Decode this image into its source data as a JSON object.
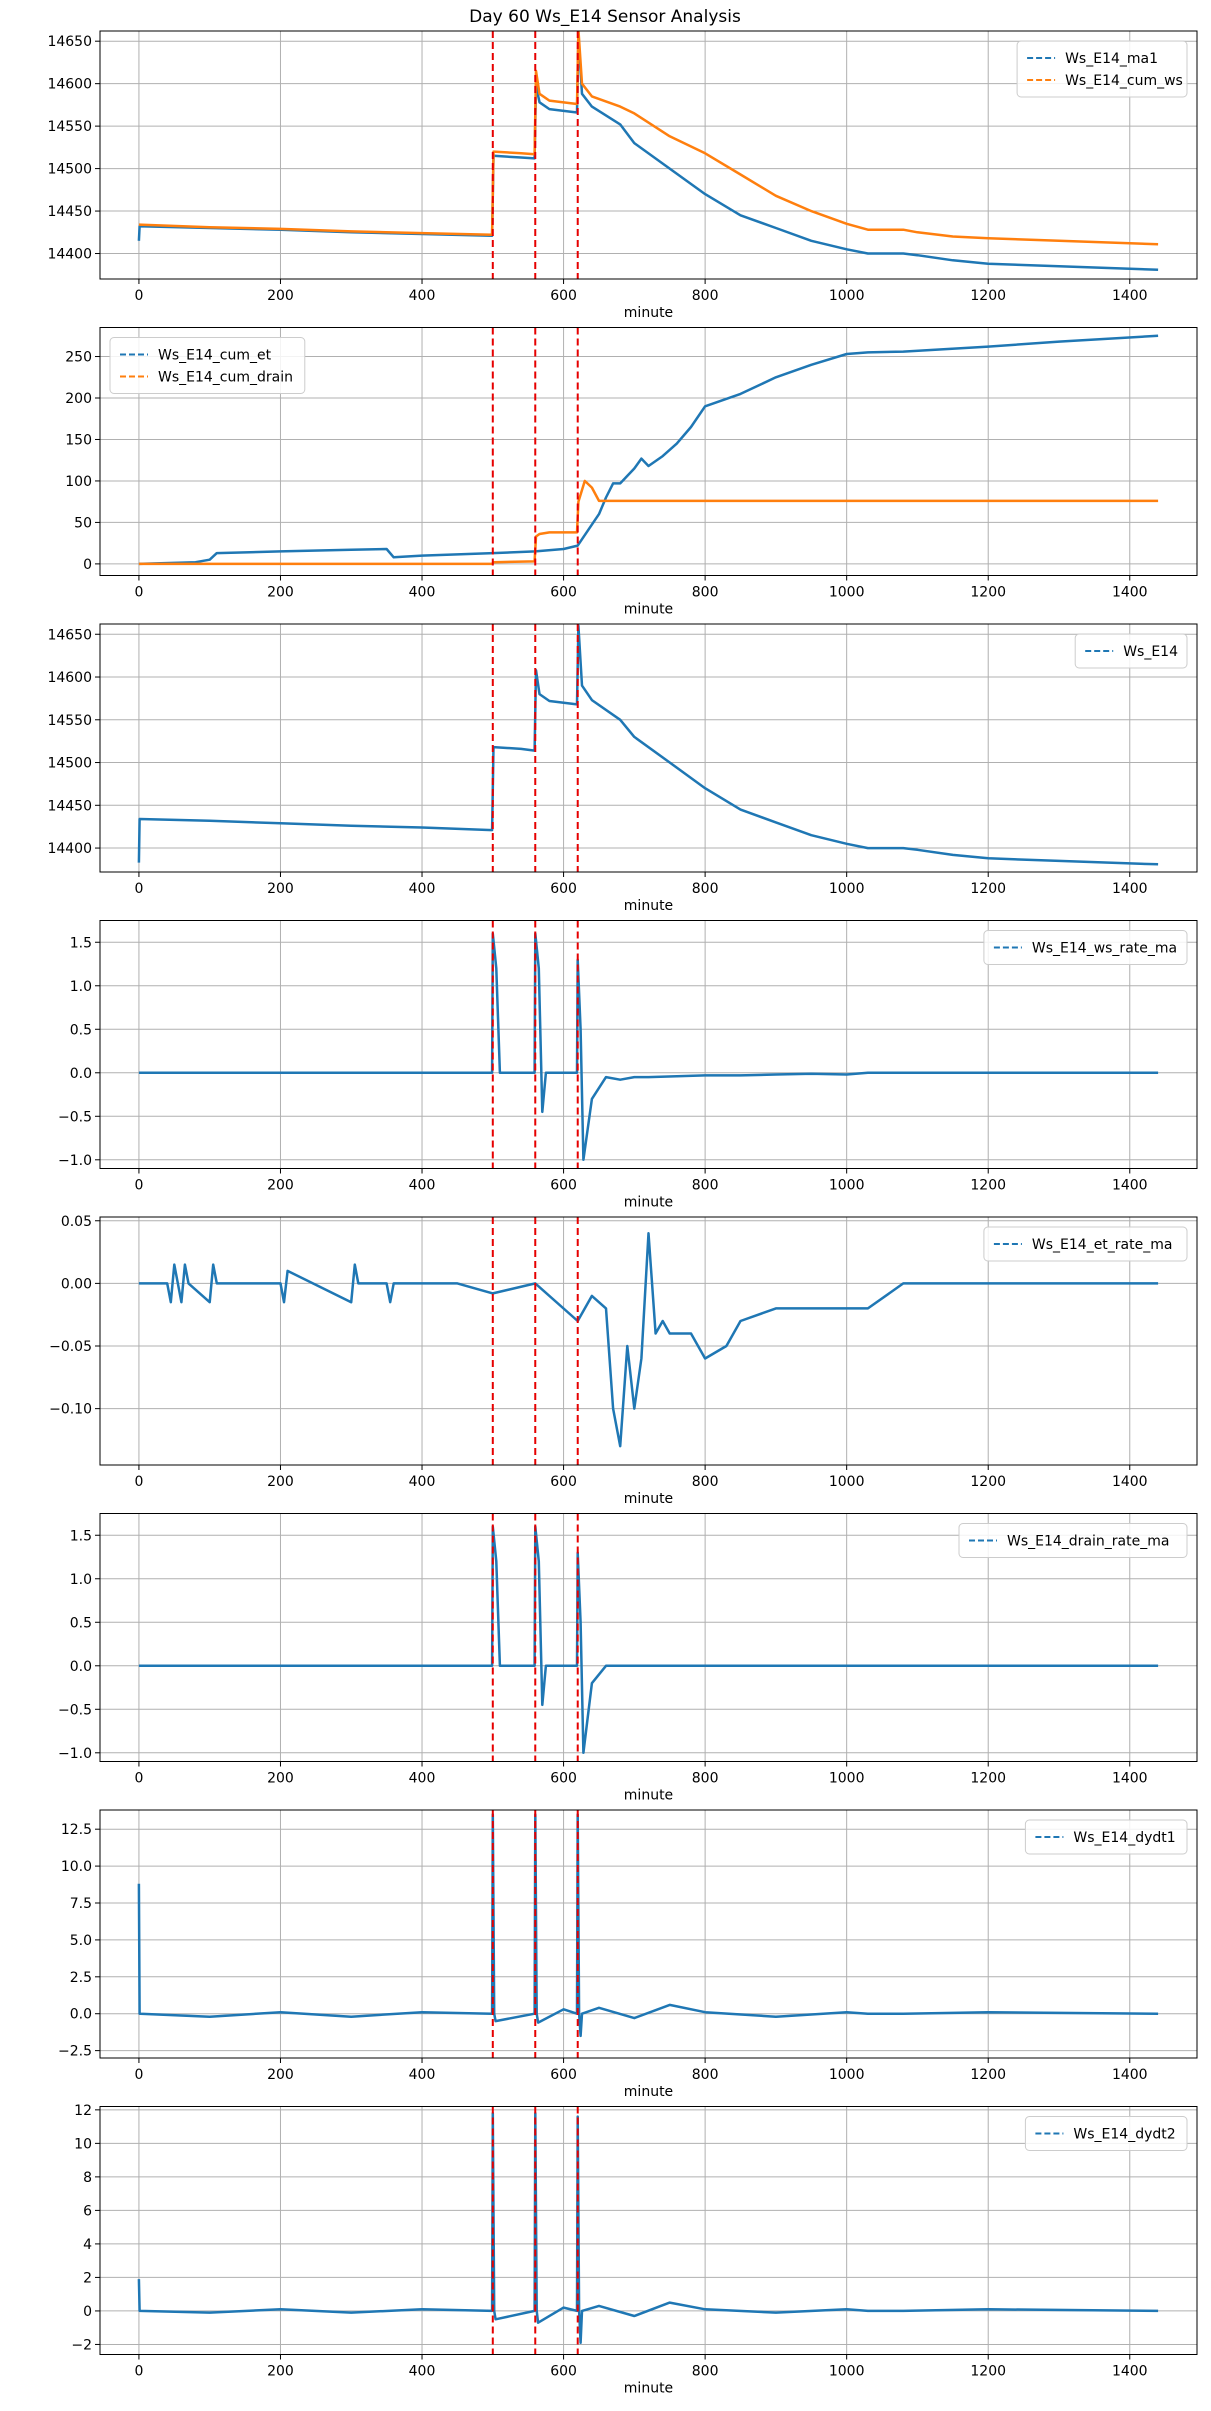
{
  "figure_title": "Day 60 Ws_E14 Sensor Analysis",
  "colors": {
    "blue": "#1f77b4",
    "orange": "#ff7f0e",
    "event": "#e60000",
    "grid": "#b0b0b0"
  },
  "chart_data": [
    {
      "type": "line",
      "xlabel": "minute",
      "xlim": [
        -55,
        1495
      ],
      "xticks": [
        0,
        200,
        400,
        600,
        800,
        1000,
        1200,
        1400
      ],
      "ylim": [
        14370,
        14662
      ],
      "yticks": [
        14400,
        14450,
        14500,
        14550,
        14600,
        14650
      ],
      "ytick_labels": [
        "14400",
        "14450",
        "14500",
        "14550",
        "14600",
        "14650"
      ],
      "event_lines": [
        500,
        560,
        620
      ],
      "legend": {
        "position": "top-right",
        "entries": [
          "Ws_E14_ma1",
          "Ws_E14_cum_ws"
        ]
      },
      "series": [
        {
          "name": "Ws_E14_ma1",
          "color": "blue",
          "x": [
            0,
            1,
            100,
            200,
            300,
            400,
            499,
            501,
            540,
            559,
            561,
            566,
            580,
            619,
            621,
            626,
            640,
            680,
            700,
            750,
            800,
            850,
            900,
            950,
            1000,
            1030,
            1080,
            1100,
            1150,
            1200,
            1300,
            1400,
            1440
          ],
          "values": [
            14415,
            14432,
            14430,
            14428,
            14425,
            14423,
            14421,
            14515,
            14513,
            14512,
            14598,
            14578,
            14570,
            14566,
            14656,
            14588,
            14573,
            14552,
            14530,
            14500,
            14470,
            14445,
            14430,
            14415,
            14405,
            14400,
            14400,
            14398,
            14392,
            14388,
            14385,
            14382,
            14381
          ]
        },
        {
          "name": "Ws_E14_cum_ws",
          "color": "orange",
          "x": [
            0,
            100,
            200,
            300,
            400,
            499,
            501,
            540,
            559,
            561,
            566,
            580,
            619,
            621,
            626,
            640,
            680,
            700,
            750,
            800,
            850,
            900,
            950,
            1000,
            1030,
            1080,
            1100,
            1150,
            1200,
            1300,
            1400,
            1440
          ],
          "values": [
            14434,
            14431,
            14429,
            14426,
            14424,
            14422,
            14520,
            14518,
            14517,
            14615,
            14588,
            14580,
            14576,
            14664,
            14600,
            14585,
            14573,
            14565,
            14538,
            14518,
            14493,
            14468,
            14450,
            14435,
            14428,
            14428,
            14425,
            14420,
            14418,
            14415,
            14412,
            14411
          ]
        }
      ]
    },
    {
      "type": "line",
      "xlabel": "minute",
      "xlim": [
        -55,
        1495
      ],
      "xticks": [
        0,
        200,
        400,
        600,
        800,
        1000,
        1200,
        1400
      ],
      "ylim": [
        -14,
        285
      ],
      "yticks": [
        0,
        50,
        100,
        150,
        200,
        250
      ],
      "ytick_labels": [
        "0",
        "50",
        "100",
        "150",
        "200",
        "250"
      ],
      "event_lines": [
        500,
        560,
        620
      ],
      "legend": {
        "position": "top-left",
        "entries": [
          "Ws_E14_cum_et",
          "Ws_E14_cum_drain"
        ]
      },
      "series": [
        {
          "name": "Ws_E14_cum_et",
          "color": "blue",
          "x": [
            0,
            80,
            100,
            110,
            200,
            300,
            350,
            360,
            400,
            500,
            560,
            600,
            620,
            650,
            660,
            670,
            680,
            700,
            710,
            720,
            740,
            760,
            780,
            800,
            850,
            900,
            950,
            1000,
            1030,
            1080,
            1200,
            1300,
            1440
          ],
          "values": [
            0,
            2,
            5,
            13,
            15,
            17,
            18,
            8,
            10,
            13,
            15,
            18,
            22,
            60,
            80,
            97,
            97,
            115,
            127,
            118,
            130,
            145,
            165,
            190,
            205,
            225,
            240,
            253,
            255,
            256,
            262,
            268,
            275
          ]
        },
        {
          "name": "Ws_E14_cum_drain",
          "color": "orange",
          "x": [
            0,
            499,
            501,
            559,
            561,
            566,
            580,
            619,
            621,
            630,
            640,
            650,
            660,
            700,
            800,
            900,
            1000,
            1030,
            1080,
            1200,
            1440
          ],
          "values": [
            0,
            0,
            2,
            3,
            33,
            36,
            38,
            38,
            75,
            100,
            92,
            76,
            76,
            76,
            76,
            76,
            76,
            76,
            76,
            76,
            76
          ]
        }
      ]
    },
    {
      "type": "line",
      "xlabel": "minute",
      "xlim": [
        -55,
        1495
      ],
      "xticks": [
        0,
        200,
        400,
        600,
        800,
        1000,
        1200,
        1400
      ],
      "ylim": [
        14372,
        14662
      ],
      "yticks": [
        14400,
        14450,
        14500,
        14550,
        14600,
        14650
      ],
      "ytick_labels": [
        "14400",
        "14450",
        "14500",
        "14550",
        "14600",
        "14650"
      ],
      "event_lines": [
        500,
        560,
        620
      ],
      "legend": {
        "position": "top-right",
        "entries": [
          "Ws_E14"
        ]
      },
      "series": [
        {
          "name": "Ws_E14",
          "color": "blue",
          "x": [
            0,
            1,
            100,
            200,
            300,
            400,
            499,
            501,
            540,
            559,
            561,
            566,
            580,
            619,
            621,
            626,
            640,
            680,
            700,
            750,
            800,
            850,
            900,
            950,
            1000,
            1030,
            1080,
            1100,
            1150,
            1200,
            1300,
            1400,
            1440
          ],
          "values": [
            14383,
            14434,
            14432,
            14429,
            14426,
            14424,
            14421,
            14518,
            14516,
            14514,
            14608,
            14580,
            14572,
            14568,
            14660,
            14590,
            14573,
            14550,
            14530,
            14500,
            14470,
            14445,
            14430,
            14415,
            14405,
            14400,
            14400,
            14398,
            14392,
            14388,
            14385,
            14382,
            14381
          ]
        }
      ]
    },
    {
      "type": "line",
      "xlabel": "minute",
      "xlim": [
        -55,
        1495
      ],
      "xticks": [
        0,
        200,
        400,
        600,
        800,
        1000,
        1200,
        1400
      ],
      "ylim": [
        -1.1,
        1.75
      ],
      "yticks": [
        -1.0,
        -0.5,
        0.0,
        0.5,
        1.0,
        1.5
      ],
      "ytick_labels": [
        "−1.0",
        "−0.5",
        "0.0",
        "0.5",
        "1.0",
        "1.5"
      ],
      "event_lines": [
        500,
        560,
        620
      ],
      "legend": {
        "position": "top-right",
        "entries": [
          "Ws_E14_ws_rate_ma"
        ]
      },
      "series": [
        {
          "name": "Ws_E14_ws_rate_ma",
          "color": "blue",
          "x": [
            0,
            100,
            200,
            300,
            400,
            499,
            500,
            505,
            510,
            515,
            540,
            559,
            560,
            565,
            570,
            575,
            590,
            619,
            620,
            624,
            628,
            640,
            660,
            680,
            700,
            720,
            760,
            800,
            850,
            900,
            950,
            1000,
            1030,
            1080,
            1200,
            1440
          ],
          "values": [
            0.0,
            0.0,
            0.0,
            0.0,
            0.0,
            0.0,
            1.6,
            1.2,
            0.0,
            0.0,
            0.0,
            0.0,
            1.6,
            1.2,
            -0.45,
            0.0,
            0.0,
            0.0,
            1.3,
            0.5,
            -1.0,
            -0.3,
            -0.05,
            -0.08,
            -0.05,
            -0.05,
            -0.04,
            -0.03,
            -0.03,
            -0.02,
            -0.01,
            -0.02,
            0.0,
            0.0,
            0.0,
            0.0
          ]
        }
      ]
    },
    {
      "type": "line",
      "xlabel": "minute",
      "xlim": [
        -55,
        1495
      ],
      "xticks": [
        0,
        200,
        400,
        600,
        800,
        1000,
        1200,
        1400
      ],
      "ylim": [
        -0.145,
        0.053
      ],
      "yticks": [
        -0.1,
        -0.05,
        0.0,
        0.05
      ],
      "ytick_labels": [
        "−0.10",
        "−0.05",
        "0.00",
        "0.05"
      ],
      "event_lines": [
        500,
        560,
        620
      ],
      "legend": {
        "position": "top-right",
        "entries": [
          "Ws_E14_et_rate_ma"
        ]
      },
      "series": [
        {
          "name": "Ws_E14_et_rate_ma",
          "color": "blue",
          "x": [
            0,
            40,
            45,
            50,
            60,
            65,
            70,
            100,
            105,
            110,
            200,
            205,
            210,
            300,
            305,
            310,
            350,
            355,
            360,
            400,
            450,
            500,
            560,
            620,
            640,
            660,
            670,
            680,
            690,
            700,
            710,
            720,
            730,
            740,
            750,
            780,
            800,
            830,
            850,
            900,
            1000,
            1030,
            1080,
            1200,
            1300,
            1440
          ],
          "values": [
            0,
            0,
            -0.015,
            0.015,
            -0.015,
            0.015,
            0,
            -0.015,
            0.015,
            0,
            0,
            -0.015,
            0.01,
            -0.015,
            0.015,
            0,
            0,
            -0.015,
            0,
            0,
            0,
            -0.008,
            0.0,
            -0.03,
            -0.01,
            -0.02,
            -0.1,
            -0.13,
            -0.05,
            -0.1,
            -0.06,
            0.04,
            -0.04,
            -0.03,
            -0.04,
            -0.04,
            -0.06,
            -0.05,
            -0.03,
            -0.02,
            -0.02,
            -0.02,
            0,
            0,
            0,
            0
          ]
        }
      ]
    },
    {
      "type": "line",
      "xlabel": "minute",
      "xlim": [
        -55,
        1495
      ],
      "xticks": [
        0,
        200,
        400,
        600,
        800,
        1000,
        1200,
        1400
      ],
      "ylim": [
        -1.1,
        1.75
      ],
      "yticks": [
        -1.0,
        -0.5,
        0.0,
        0.5,
        1.0,
        1.5
      ],
      "ytick_labels": [
        "−1.0",
        "−0.5",
        "0.0",
        "0.5",
        "1.0",
        "1.5"
      ],
      "event_lines": [
        500,
        560,
        620
      ],
      "legend": {
        "position": "top-right",
        "entries": [
          "Ws_E14_drain_rate_ma"
        ]
      },
      "series": [
        {
          "name": "Ws_E14_drain_rate_ma",
          "color": "blue",
          "x": [
            0,
            100,
            200,
            300,
            400,
            499,
            500,
            505,
            510,
            515,
            540,
            559,
            560,
            565,
            570,
            575,
            590,
            619,
            620,
            624,
            628,
            640,
            660,
            700,
            800,
            900,
            1000,
            1030,
            1080,
            1200,
            1440
          ],
          "values": [
            0.0,
            0.0,
            0.0,
            0.0,
            0.0,
            0.0,
            1.6,
            1.2,
            0.0,
            0.0,
            0.0,
            0.0,
            1.6,
            1.2,
            -0.45,
            0.0,
            0.0,
            0.0,
            1.3,
            0.5,
            -1.0,
            -0.2,
            0.0,
            0.0,
            0.0,
            0.0,
            0.0,
            0.0,
            0.0,
            0.0,
            0.0
          ]
        }
      ]
    },
    {
      "type": "line",
      "xlabel": "minute",
      "xlim": [
        -55,
        1495
      ],
      "xticks": [
        0,
        200,
        400,
        600,
        800,
        1000,
        1200,
        1400
      ],
      "ylim": [
        -3.0,
        13.8
      ],
      "yticks": [
        -2.5,
        0.0,
        2.5,
        5.0,
        7.5,
        10.0,
        12.5
      ],
      "ytick_labels": [
        "−2.5",
        "0.0",
        "2.5",
        "5.0",
        "7.5",
        "10.0",
        "12.5"
      ],
      "event_lines": [
        500,
        560,
        620
      ],
      "legend": {
        "position": "top-right",
        "entries": [
          "Ws_E14_dydt1"
        ]
      },
      "series": [
        {
          "name": "Ws_E14_dydt1",
          "color": "blue",
          "x": [
            0,
            1,
            2,
            100,
            200,
            300,
            400,
            499,
            500,
            502,
            504,
            559,
            560,
            562,
            564,
            600,
            619,
            620,
            622,
            624,
            626,
            650,
            700,
            750,
            800,
            900,
            1000,
            1030,
            1080,
            1200,
            1440
          ],
          "values": [
            8.8,
            0.0,
            0.0,
            -0.2,
            0.1,
            -0.2,
            0.1,
            0.0,
            13.5,
            0.0,
            -0.5,
            0.0,
            13.5,
            0.0,
            -0.6,
            0.3,
            0.0,
            13.5,
            0.0,
            -1.5,
            0.0,
            0.4,
            -0.3,
            0.6,
            0.1,
            -0.2,
            0.1,
            0.0,
            0.0,
            0.1,
            0.0
          ]
        }
      ]
    },
    {
      "type": "line",
      "xlabel": "minute",
      "xlim": [
        -55,
        1495
      ],
      "xticks": [
        0,
        200,
        400,
        600,
        800,
        1000,
        1200,
        1400
      ],
      "ylim": [
        -2.6,
        12.2
      ],
      "yticks": [
        -2,
        0,
        2,
        4,
        6,
        8,
        10,
        12
      ],
      "ytick_labels": [
        "−2",
        "0",
        "2",
        "4",
        "6",
        "8",
        "10",
        "12"
      ],
      "event_lines": [
        500,
        560,
        620
      ],
      "legend": {
        "position": "top-right",
        "entries": [
          "Ws_E14_dydt2"
        ]
      },
      "series": [
        {
          "name": "Ws_E14_dydt2",
          "color": "blue",
          "x": [
            0,
            1,
            2,
            100,
            200,
            300,
            400,
            499,
            500,
            502,
            504,
            559,
            560,
            562,
            564,
            600,
            619,
            620,
            622,
            624,
            626,
            650,
            700,
            750,
            800,
            900,
            1000,
            1030,
            1080,
            1200,
            1440
          ],
          "values": [
            1.9,
            0.0,
            0.0,
            -0.1,
            0.1,
            -0.1,
            0.1,
            0.0,
            11.8,
            0.0,
            -0.5,
            0.0,
            11.8,
            0.0,
            -0.7,
            0.2,
            0.0,
            11.6,
            0.0,
            -1.9,
            0.0,
            0.3,
            -0.3,
            0.5,
            0.1,
            -0.1,
            0.1,
            0.0,
            0.0,
            0.1,
            0.0
          ]
        }
      ]
    }
  ]
}
